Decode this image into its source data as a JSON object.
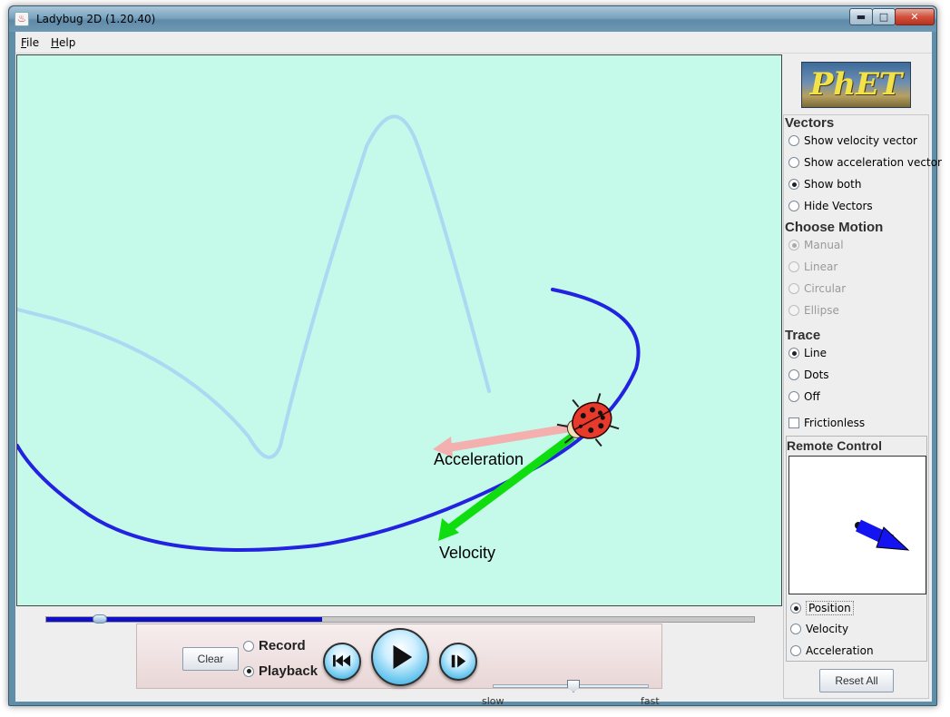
{
  "window": {
    "title": "Ladybug 2D (1.20.40)",
    "minimize_glyph": "▬",
    "maximize_glyph": "□",
    "close_glyph": "✕"
  },
  "menu": {
    "file": {
      "mnemonic": "F",
      "rest": "ile"
    },
    "help": {
      "mnemonic": "H",
      "rest": "elp"
    }
  },
  "canvas": {
    "background": "#c5faeb",
    "acceleration_label": "Acceleration",
    "velocity_label": "Velocity",
    "acceleration_color": "#f4b0ae",
    "velocity_color": "#10dd10",
    "trace_color": "#2222e0"
  },
  "timeline": {
    "progress": 0.39,
    "knob_position": 0.075
  },
  "controls": {
    "clear_label": "Clear",
    "record_label": "Record",
    "playback_label": "Playback",
    "mode_selected": "Playback",
    "speed_slow": "slow",
    "speed_fast": "fast",
    "speed_level": 0.52
  },
  "sidebar": {
    "logo_text": "PhET",
    "vectors": {
      "heading": "Vectors",
      "options": [
        "Show velocity vector",
        "Show acceleration vector",
        "Show both",
        "Hide Vectors"
      ],
      "selected": "Show both"
    },
    "motion": {
      "heading": "Choose Motion",
      "options": [
        "Manual",
        "Linear",
        "Circular",
        "Ellipse"
      ],
      "selected": "Manual"
    },
    "trace": {
      "heading": "Trace",
      "options": [
        "Line",
        "Dots",
        "Off"
      ],
      "selected": "Line"
    },
    "frictionless_label": "Frictionless",
    "frictionless_checked": false,
    "remote": {
      "heading": "Remote Control",
      "options": [
        "Position",
        "Velocity",
        "Acceleration"
      ],
      "selected": "Position"
    },
    "reset_label": "Reset All"
  }
}
